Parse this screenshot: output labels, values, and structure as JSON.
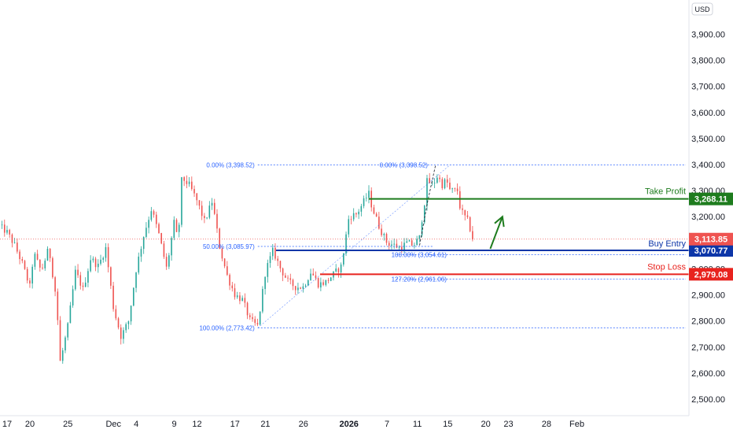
{
  "chart_data": {
    "type": "candlestick",
    "currency": "USD",
    "y_axis": {
      "range": [
        2450,
        4050
      ],
      "ticks": [
        "2,500.00",
        "2,600.00",
        "2,700.00",
        "2,800.00",
        "2,900.00",
        "3,000.00",
        "3,100.00",
        "3,200.00",
        "3,300.00",
        "3,400.00",
        "3,500.00",
        "3,600.00",
        "3,700.00",
        "3,800.00",
        "3,900.00"
      ],
      "tick_values": [
        2500,
        2600,
        2700,
        2800,
        2900,
        3000,
        3100,
        3200,
        3300,
        3400,
        3500,
        3600,
        3700,
        3800,
        3900
      ]
    },
    "x_axis": {
      "ticks": [
        {
          "label": "17",
          "day": 0
        },
        {
          "label": "20",
          "day": 3
        },
        {
          "label": "25",
          "day": 8
        },
        {
          "label": "Dec",
          "day": 14
        },
        {
          "label": "4",
          "day": 17
        },
        {
          "label": "9",
          "day": 22
        },
        {
          "label": "12",
          "day": 25
        },
        {
          "label": "17",
          "day": 30
        },
        {
          "label": "21",
          "day": 34
        },
        {
          "label": "26",
          "day": 39
        },
        {
          "label": "2026",
          "day": 45
        },
        {
          "label": "7",
          "day": 50
        },
        {
          "label": "11",
          "day": 54
        },
        {
          "label": "15",
          "day": 58
        },
        {
          "label": "20",
          "day": 63
        },
        {
          "label": "23",
          "day": 66
        },
        {
          "label": "28",
          "day": 71
        },
        {
          "label": "Feb",
          "day": 75
        }
      ]
    },
    "price_path": [
      [
        -1.5,
        3175
      ],
      [
        0,
        3140
      ],
      [
        1,
        3090
      ],
      [
        2,
        3020
      ],
      [
        3,
        2930
      ],
      [
        3.5,
        3060
      ],
      [
        4.5,
        2990
      ],
      [
        5.5,
        3080
      ],
      [
        6.5,
        2880
      ],
      [
        7,
        2640
      ],
      [
        8,
        2780
      ],
      [
        9,
        2990
      ],
      [
        10,
        2920
      ],
      [
        11,
        3040
      ],
      [
        12,
        3010
      ],
      [
        13,
        3080
      ],
      [
        14,
        2850
      ],
      [
        15,
        2740
      ],
      [
        16,
        2800
      ],
      [
        17,
        3000
      ],
      [
        18,
        3130
      ],
      [
        19,
        3230
      ],
      [
        20,
        3130
      ],
      [
        21,
        3000
      ],
      [
        22,
        3180
      ],
      [
        22.5,
        3100
      ],
      [
        23,
        3350
      ],
      [
        24,
        3320
      ],
      [
        25,
        3260
      ],
      [
        26,
        3180
      ],
      [
        27,
        3260
      ],
      [
        28,
        3080
      ],
      [
        29,
        2970
      ],
      [
        30,
        2900
      ],
      [
        31,
        2880
      ],
      [
        32,
        2800
      ],
      [
        33,
        2780
      ],
      [
        34,
        2990
      ],
      [
        35,
        3070
      ],
      [
        36,
        3000
      ],
      [
        37,
        2950
      ],
      [
        38,
        2930
      ],
      [
        39,
        2930
      ],
      [
        40,
        2990
      ],
      [
        41,
        2940
      ],
      [
        42,
        2950
      ],
      [
        43,
        2980
      ],
      [
        44,
        3010
      ],
      [
        45,
        3200
      ],
      [
        46,
        3210
      ],
      [
        47,
        3260
      ],
      [
        47.6,
        3290
      ],
      [
        48,
        3240
      ],
      [
        49,
        3160
      ],
      [
        50,
        3100
      ],
      [
        51,
        3090
      ],
      [
        51.7,
        3080
      ],
      [
        52.7,
        3100
      ],
      [
        53.5,
        3090
      ],
      [
        54.3,
        3120
      ],
      [
        54.6,
        3190
      ],
      [
        54.8,
        3220
      ],
      [
        55.3,
        3340
      ],
      [
        56,
        3320
      ],
      [
        56.7,
        3360
      ],
      [
        57.2,
        3320
      ],
      [
        57.8,
        3340
      ],
      [
        58.3,
        3300
      ],
      [
        59,
        3300
      ],
      [
        59.4,
        3300
      ],
      [
        59.6,
        3240
      ],
      [
        60,
        3210
      ],
      [
        60.7,
        3180
      ],
      [
        61.3,
        3114
      ]
    ],
    "last_price": 3113.85,
    "last_price_label": "3,113.85",
    "levels": [
      {
        "name": "Take Profit",
        "price": 3268.11,
        "label": "3,268.11",
        "color": "#1e7c1e"
      },
      {
        "name": "Buy Entry",
        "price": 3070.77,
        "label": "3,070.77",
        "color": "#0d36a8"
      },
      {
        "name": "Stop Loss",
        "price": 2979.08,
        "label": "2,979.08",
        "color": "#e8231e"
      }
    ],
    "fib_left": [
      {
        "label": "0.00% (3,398.52)",
        "price": 3398.52
      },
      {
        "label": "50.00% (3,085.97)",
        "price": 3085.97
      },
      {
        "label": "100.00% (2,773.42)",
        "price": 2773.42
      }
    ],
    "fib_right": [
      {
        "label": "0.00% (3,398.52)",
        "price": 3398.52
      },
      {
        "label": "100.00% (3,054.61)",
        "price": 3054.61
      },
      {
        "label": "127.20% (2,961.06)",
        "price": 2961.06
      }
    ],
    "colors": {
      "up": "#26a69a",
      "down": "#ef5350",
      "fib": "#2962ff",
      "grid": "#f0f3fa"
    }
  }
}
